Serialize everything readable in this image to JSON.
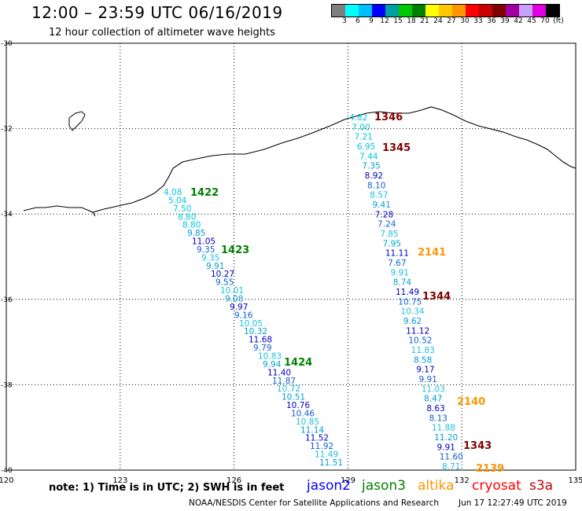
{
  "header": {
    "title": "12:00 – 23:59 UTC 06/16/2019",
    "subtitle": "12 hour collection of altimeter wave heights"
  },
  "colorbar": {
    "labels": [
      "3",
      "6",
      "9",
      "12",
      "15",
      "18",
      "21",
      "24",
      "27",
      "30",
      "33",
      "36",
      "39",
      "42",
      "45",
      "70",
      "(ft)"
    ],
    "colors": [
      "#7f7f7f",
      "#00ffff",
      "#00bfff",
      "#0000ff",
      "#00a0a0",
      "#00c800",
      "#008000",
      "#ffff00",
      "#ffc800",
      "#ff9600",
      "#ff0000",
      "#c80000",
      "#800000",
      "#a000a0",
      "#c8a0ff",
      "#e000e0",
      "#000000"
    ]
  },
  "axes": {
    "lon_ticks": [
      "120",
      "123",
      "126",
      "129",
      "132",
      "135"
    ],
    "lat_ticks": [
      "-30",
      "-32",
      "-34",
      "-36",
      "-38",
      "-40"
    ],
    "lon_range": [
      120,
      135
    ],
    "lat_range": [
      -40,
      -30
    ]
  },
  "tracks": [
    {
      "name": "west-track",
      "passes": [
        {
          "label": "1422",
          "color": "#008000"
        },
        {
          "label": "1423",
          "color": "#008000"
        },
        {
          "label": "1424",
          "color": "#008000"
        }
      ],
      "values": [
        "4.08",
        "5.04",
        "7.50",
        "8.80",
        "8.80",
        "9.85",
        "11.05",
        "9.35",
        "9.35",
        "9.91",
        "10.27",
        "9.55",
        "10.01",
        "9.08",
        "9.97",
        "9.16",
        "10.05",
        "10.32",
        "11.68",
        "9.79",
        "10.83",
        "9.94",
        "11.40",
        "11.87",
        "10.72",
        "10.51",
        "10.76",
        "10.46",
        "10.85",
        "11.14",
        "11.52",
        "11.92",
        "11.49",
        "11.51"
      ]
    },
    {
      "name": "east-track",
      "passes": [
        {
          "label": "1346",
          "color": "#800000"
        },
        {
          "label": "1345",
          "color": "#800000"
        },
        {
          "label": "2141",
          "color": "#ff9600"
        },
        {
          "label": "1344",
          "color": "#800000"
        },
        {
          "label": "2140",
          "color": "#ff9600"
        },
        {
          "label": "1343",
          "color": "#800000"
        },
        {
          "label": "2139",
          "color": "#ff9600"
        }
      ],
      "values": [
        "4.82",
        "7.00",
        "7.21",
        "6.95",
        "7.44",
        "7.35",
        "8.92",
        "8.10",
        "8.57",
        "9.41",
        "7.28",
        "7.24",
        "7.85",
        "7.95",
        "11.11",
        "7.67",
        "9.91",
        "8.74",
        "11.49",
        "10.75",
        "10.34",
        "9.62",
        "11.12",
        "10.52",
        "11.83",
        "8.58",
        "9.17",
        "9.91",
        "11.03",
        "8.47",
        "8.63",
        "8.13",
        "11.88",
        "11.20",
        "9.91",
        "11.60",
        "8.71"
      ]
    }
  ],
  "note": "note: 1) Time is in UTC; 2) SWH is in feet",
  "satellites": [
    {
      "name": "jason2",
      "color": "#0000ff"
    },
    {
      "name": "jason3",
      "color": "#008000"
    },
    {
      "name": "altika",
      "color": "#ff9600"
    },
    {
      "name": "cryosat",
      "color": "#ff0000"
    },
    {
      "name": "s3a",
      "color": "#c80000"
    }
  ],
  "footer": {
    "source": "NOAA/NESDIS Center for Satellite Applications and Research",
    "timestamp": "Jun 17 12:27:49 UTC 2019"
  }
}
